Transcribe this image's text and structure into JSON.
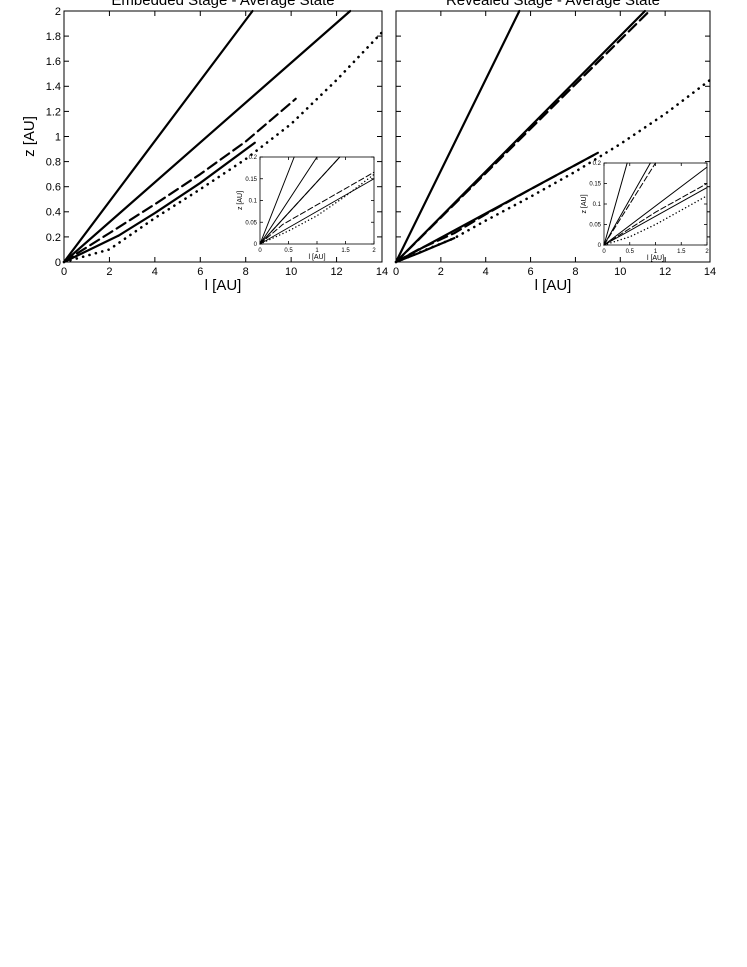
{
  "chart_data": [
    {
      "type": "line",
      "title": "Embedded Stage - Average State",
      "xlabel": "l [AU]",
      "ylabel": "z [AU]",
      "xlim": [
        0,
        14
      ],
      "ylim": [
        0,
        2
      ],
      "xticks": [
        0,
        2,
        4,
        6,
        8,
        10,
        12,
        14
      ],
      "yticks": [
        0,
        0.2,
        0.4,
        0.6,
        0.8,
        1,
        1.2,
        1.4,
        1.6,
        1.8,
        2
      ],
      "grid": false,
      "series": [
        {
          "style": "solid",
          "points": [
            [
              0,
              0
            ],
            [
              8.3,
              2.0
            ]
          ]
        },
        {
          "style": "solid",
          "points": [
            [
              0,
              0
            ],
            [
              12.6,
              2.0
            ]
          ]
        },
        {
          "style": "dashed",
          "points": [
            [
              0,
              0
            ],
            [
              0.5,
              0.06
            ],
            [
              2,
              0.23
            ],
            [
              4,
              0.46
            ],
            [
              6,
              0.7
            ],
            [
              8,
              0.96
            ],
            [
              10.2,
              1.3
            ]
          ]
        },
        {
          "style": "solid",
          "points": [
            [
              0,
              0
            ],
            [
              0.8,
              0.07
            ],
            [
              2.4,
              0.21
            ]
          ]
        },
        {
          "style": "solid",
          "points": [
            [
              2.4,
              0.21
            ],
            [
              4,
              0.39
            ],
            [
              6,
              0.63
            ],
            [
              8.4,
              0.95
            ]
          ]
        },
        {
          "style": "dotted",
          "points": [
            [
              0,
              0
            ],
            [
              2,
              0.1
            ],
            [
              4,
              0.35
            ],
            [
              6,
              0.58
            ],
            [
              8,
              0.82
            ],
            [
              10,
              1.1
            ],
            [
              12,
              1.45
            ],
            [
              14,
              1.83
            ]
          ]
        }
      ],
      "inset": {
        "xlabel": "l [AU]",
        "ylabel": "z [AU]",
        "xlim": [
          0,
          2
        ],
        "ylim": [
          0,
          0.2
        ],
        "xticks": [
          0,
          0.5,
          1,
          1.5,
          2
        ],
        "xtick_labels": [
          "0",
          "0.5",
          "1",
          "1.5",
          "2"
        ],
        "yticks": [
          0,
          0.05,
          0.1,
          0.15,
          0.2
        ],
        "ytick_labels": [
          "0",
          "0.05",
          "0.1",
          "0.15",
          "0.2"
        ],
        "series": [
          {
            "style": "solid",
            "points": [
              [
                0,
                0
              ],
              [
                0.6,
                0.2
              ]
            ]
          },
          {
            "style": "solid",
            "points": [
              [
                0,
                0
              ],
              [
                1.0,
                0.2
              ]
            ]
          },
          {
            "style": "dashed",
            "points": [
              [
                0,
                0
              ],
              [
                1.4,
                0.2
              ]
            ]
          },
          {
            "style": "solid",
            "points": [
              [
                0,
                0
              ],
              [
                1.4,
                0.2
              ]
            ]
          },
          {
            "style": "solid",
            "points": [
              [
                0,
                0
              ],
              [
                2.0,
                0.15
              ]
            ]
          },
          {
            "style": "dashed",
            "points": [
              [
                0,
                0
              ],
              [
                0.4,
                0.045
              ],
              [
                1.0,
                0.09
              ],
              [
                2.0,
                0.165
              ]
            ]
          },
          {
            "style": "dotted",
            "points": [
              [
                0,
                0
              ],
              [
                0.5,
                0.03
              ],
              [
                1.0,
                0.065
              ],
              [
                1.5,
                0.11
              ],
              [
                2.0,
                0.16
              ]
            ]
          }
        ]
      }
    },
    {
      "type": "line",
      "title": "Revealed Stage - Average State",
      "xlabel": "l [AU]",
      "ylabel": "",
      "xlim": [
        0,
        14
      ],
      "ylim": [
        0,
        2
      ],
      "xticks": [
        0,
        2,
        4,
        6,
        8,
        10,
        12,
        14
      ],
      "yticks": [
        0,
        0.2,
        0.4,
        0.6,
        0.8,
        1,
        1.2,
        1.4,
        1.6,
        1.8,
        2
      ],
      "grid": false,
      "series": [
        {
          "style": "solid",
          "points": [
            [
              0,
              0
            ],
            [
              5.5,
              2.0
            ]
          ]
        },
        {
          "style": "solid",
          "points": [
            [
              0,
              0
            ],
            [
              11.1,
              2.0
            ]
          ]
        },
        {
          "style": "dashed",
          "points": [
            [
              0,
              0
            ],
            [
              11.3,
              2.0
            ]
          ]
        },
        {
          "style": "solid",
          "points": [
            [
              0,
              0
            ],
            [
              9.0,
              0.87
            ]
          ]
        },
        {
          "style": "dashed",
          "points": [
            [
              0,
              0
            ],
            [
              1,
              0.1
            ],
            [
              2.6,
              0.23
            ],
            [
              4,
              0.38
            ],
            [
              6,
              0.58
            ],
            [
              8.8,
              0.85
            ]
          ]
        },
        {
          "style": "solid",
          "points": [
            [
              0,
              0
            ],
            [
              1,
              0.07
            ],
            [
              2.6,
              0.19
            ]
          ]
        },
        {
          "style": "dotted",
          "points": [
            [
              0,
              0
            ],
            [
              2.6,
              0.19
            ],
            [
              4,
              0.33
            ],
            [
              6,
              0.52
            ],
            [
              8,
              0.72
            ],
            [
              10,
              0.94
            ],
            [
              12,
              1.18
            ],
            [
              14,
              1.45
            ]
          ]
        }
      ],
      "inset": {
        "xlabel": "l [AU]",
        "ylabel": "z [AU]",
        "xlim": [
          0,
          2
        ],
        "ylim": [
          0,
          0.2
        ],
        "xticks": [
          0,
          0.5,
          1,
          1.5,
          2
        ],
        "xtick_labels": [
          "0",
          "0.5",
          "1",
          "1.5",
          "2"
        ],
        "yticks": [
          0,
          0.05,
          0.1,
          0.15,
          0.2
        ],
        "ytick_labels": [
          "0",
          "0.05",
          "0.1",
          "0.15",
          "0.2"
        ],
        "series": [
          {
            "style": "solid",
            "points": [
              [
                0,
                0
              ],
              [
                0.45,
                0.2
              ]
            ]
          },
          {
            "style": "solid",
            "points": [
              [
                0,
                0
              ],
              [
                0.9,
                0.2
              ]
            ]
          },
          {
            "style": "dashed",
            "points": [
              [
                0,
                0
              ],
              [
                1.0,
                0.2
              ]
            ]
          },
          {
            "style": "solid",
            "points": [
              [
                0,
                0
              ],
              [
                2.0,
                0.19
              ]
            ]
          },
          {
            "style": "solid",
            "points": [
              [
                0,
                0
              ],
              [
                2.0,
                0.14
              ]
            ]
          },
          {
            "style": "dashed",
            "points": [
              [
                0,
                0
              ],
              [
                0.5,
                0.04
              ],
              [
                1.0,
                0.08
              ],
              [
                2.0,
                0.15
              ]
            ]
          },
          {
            "style": "dotted",
            "points": [
              [
                0,
                0
              ],
              [
                0.5,
                0.02
              ],
              [
                1.0,
                0.05
              ],
              [
                1.5,
                0.085
              ],
              [
                2.0,
                0.12
              ]
            ]
          }
        ]
      }
    }
  ]
}
